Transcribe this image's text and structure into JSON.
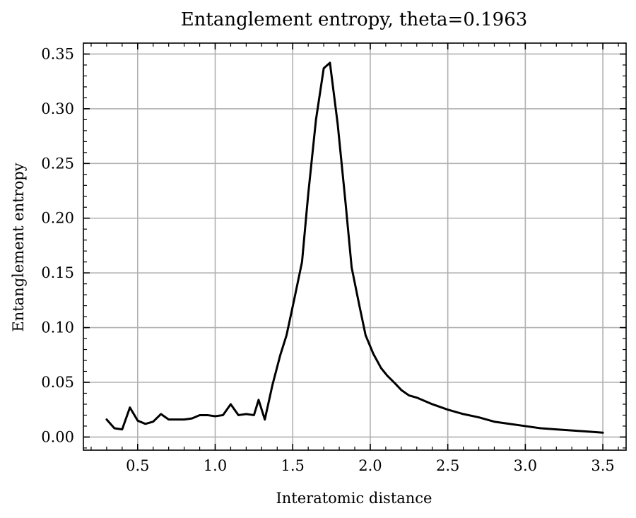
{
  "chart_data": {
    "type": "line",
    "title": "Entanglement entropy, theta=0.1963",
    "xlabel": "Interatomic distance",
    "ylabel": "Entanglement entropy",
    "xlim": [
      0.15,
      3.65
    ],
    "ylim": [
      -0.012,
      0.36
    ],
    "xticks": [
      0.5,
      1.0,
      1.5,
      2.0,
      2.5,
      3.0,
      3.5
    ],
    "xtick_labels": [
      "0.5",
      "1.0",
      "1.5",
      "2.0",
      "2.5",
      "3.0",
      "3.5"
    ],
    "yticks": [
      0.0,
      0.05,
      0.1,
      0.15,
      0.2,
      0.25,
      0.3,
      0.35
    ],
    "ytick_labels": [
      "0.00",
      "0.05",
      "0.10",
      "0.15",
      "0.20",
      "0.25",
      "0.30",
      "0.35"
    ],
    "grid": true,
    "series": [
      {
        "color": "#000000",
        "x": [
          0.3,
          0.35,
          0.4,
          0.45,
          0.5,
          0.55,
          0.6,
          0.65,
          0.7,
          0.75,
          0.8,
          0.85,
          0.9,
          0.95,
          1.0,
          1.05,
          1.1,
          1.15,
          1.2,
          1.25,
          1.28,
          1.32,
          1.37,
          1.42,
          1.46,
          1.51,
          1.56,
          1.6,
          1.65,
          1.7,
          1.74,
          1.79,
          1.84,
          1.88,
          1.93,
          1.97,
          2.02,
          2.07,
          2.11,
          2.16,
          2.2,
          2.25,
          2.3,
          2.4,
          2.5,
          2.6,
          2.7,
          2.8,
          2.9,
          3.0,
          3.1,
          3.2,
          3.3,
          3.4,
          3.5
        ],
        "y": [
          0.016,
          0.008,
          0.007,
          0.027,
          0.015,
          0.012,
          0.014,
          0.021,
          0.016,
          0.016,
          0.016,
          0.017,
          0.02,
          0.02,
          0.019,
          0.02,
          0.03,
          0.02,
          0.021,
          0.02,
          0.034,
          0.016,
          0.048,
          0.075,
          0.093,
          0.126,
          0.16,
          0.222,
          0.29,
          0.337,
          0.342,
          0.286,
          0.215,
          0.155,
          0.12,
          0.093,
          0.076,
          0.063,
          0.056,
          0.049,
          0.043,
          0.038,
          0.036,
          0.03,
          0.025,
          0.021,
          0.018,
          0.014,
          0.012,
          0.01,
          0.008,
          0.007,
          0.006,
          0.005,
          0.004
        ]
      }
    ]
  }
}
